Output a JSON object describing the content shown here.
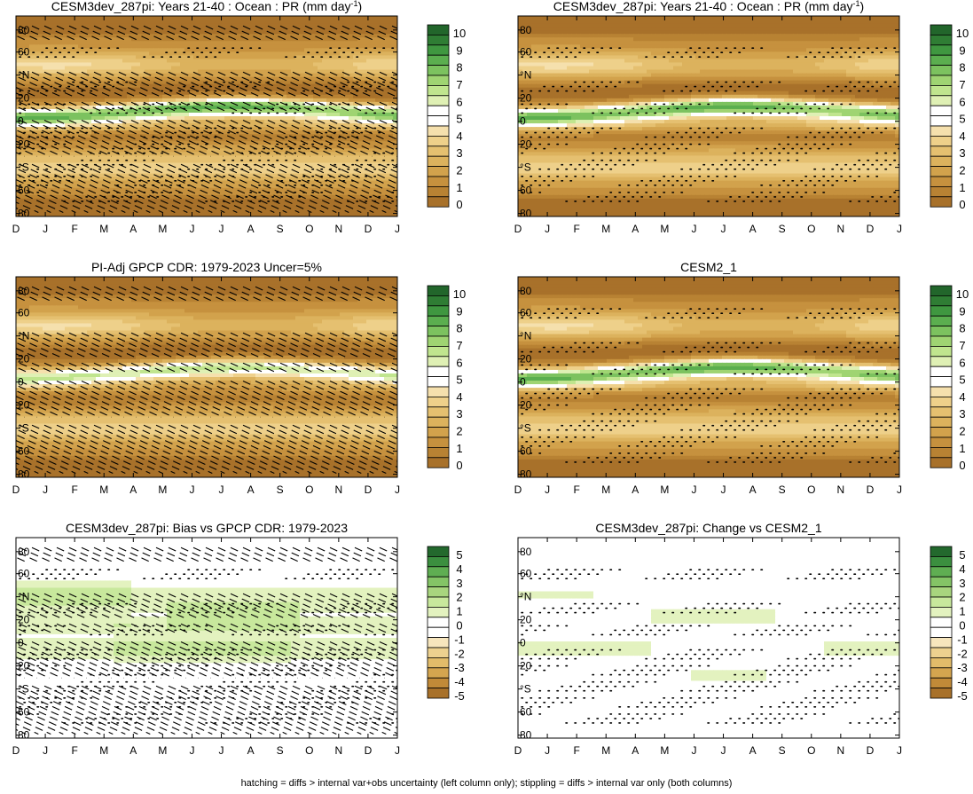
{
  "footnote": "hatching = diffs > internal var+obs uncertainty (left column only); stippling = diffs > internal var only (both columns)",
  "colors": {
    "precip_scale": [
      "#a8712a",
      "#b88233",
      "#c6913e",
      "#d2a24c",
      "#dcb25d",
      "#e5c070",
      "#eed08a",
      "#f5e0ad",
      "#ffffff",
      "#ffffff",
      "#dff0b4",
      "#c0e58e",
      "#9fd472",
      "#7cc25f",
      "#5bae4f",
      "#3f9740",
      "#2f7d34",
      "#22662b"
    ],
    "diff_scale": [
      "#a8712a",
      "#c18a38",
      "#d4a54f",
      "#e2bc6a",
      "#edd18f",
      "#f7e6bd",
      "#ffffff",
      "#ffffff",
      "#e3f2bf",
      "#c8e89c",
      "#a8d57e",
      "#84c466",
      "#5fae52",
      "#3b8f3f",
      "#23692d"
    ]
  },
  "chart_data": [
    {
      "id": "p1",
      "type": "heatmap",
      "title": "CESM3dev_287pi: Years 21-40 : Ocean : PR (mm day",
      "title_sup": "-1",
      "title_end": ")",
      "x_ticks": [
        "D",
        "J",
        "F",
        "M",
        "A",
        "M",
        "J",
        "J",
        "A",
        "S",
        "O",
        "N",
        "D",
        "J"
      ],
      "y_ticks": [
        "80",
        "60",
        "°N",
        "20",
        "0",
        "20",
        "°S",
        "60",
        "80"
      ],
      "ylim": [
        -90,
        90
      ],
      "colorbar_labels": [
        "10",
        "9",
        "8",
        "7",
        "6",
        "5",
        "4",
        "3",
        "2",
        "1",
        "0"
      ],
      "field": "mean_precip_model",
      "overlay": "hatching+stippling"
    },
    {
      "id": "p2",
      "type": "heatmap",
      "title": "CESM3dev_287pi: Years 21-40 : Ocean : PR (mm day",
      "title_sup": "-1",
      "title_end": ")",
      "x_ticks": [
        "D",
        "J",
        "F",
        "M",
        "A",
        "M",
        "J",
        "J",
        "A",
        "S",
        "O",
        "N",
        "D",
        "J"
      ],
      "y_ticks": [
        "80",
        "60",
        "°N",
        "20",
        "0",
        "20",
        "°S",
        "60",
        "80"
      ],
      "ylim": [
        -90,
        90
      ],
      "colorbar_labels": [
        "10",
        "9",
        "8",
        "7",
        "6",
        "5",
        "4",
        "3",
        "2",
        "1",
        "0"
      ],
      "field": "mean_precip_model",
      "overlay": "stippling"
    },
    {
      "id": "p3",
      "type": "heatmap",
      "title": "PI-Adj GPCP CDR: 1979-2023 Uncer=5%",
      "x_ticks": [
        "D",
        "J",
        "F",
        "M",
        "A",
        "M",
        "J",
        "J",
        "A",
        "S",
        "O",
        "N",
        "D",
        "J"
      ],
      "y_ticks": [
        "80",
        "60",
        "°N",
        "20",
        "0",
        "20",
        "°S",
        "60",
        "80"
      ],
      "ylim": [
        -90,
        90
      ],
      "colorbar_labels": [
        "10",
        "9",
        "8",
        "7",
        "6",
        "5",
        "4",
        "3",
        "2",
        "1",
        "0"
      ],
      "field": "mean_precip_obs",
      "overlay": "hatching"
    },
    {
      "id": "p4",
      "type": "heatmap",
      "title": "CESM2_1",
      "x_ticks": [
        "D",
        "J",
        "F",
        "M",
        "A",
        "M",
        "J",
        "J",
        "A",
        "S",
        "O",
        "N",
        "D",
        "J"
      ],
      "y_ticks": [
        "80",
        "60",
        "°N",
        "20",
        "0",
        "20",
        "°S",
        "60",
        "80"
      ],
      "ylim": [
        -90,
        90
      ],
      "colorbar_labels": [
        "10",
        "9",
        "8",
        "7",
        "6",
        "5",
        "4",
        "3",
        "2",
        "1",
        "0"
      ],
      "field": "mean_precip_ref",
      "overlay": "stippling"
    },
    {
      "id": "p5",
      "type": "heatmap",
      "title": "CESM3dev_287pi: Bias vs GPCP CDR: 1979-2023",
      "x_ticks": [
        "D",
        "J",
        "F",
        "M",
        "A",
        "M",
        "J",
        "J",
        "A",
        "S",
        "O",
        "N",
        "D",
        "J"
      ],
      "y_ticks": [
        "80",
        "60",
        "°N",
        "20",
        "0",
        "20",
        "°S",
        "60",
        "80"
      ],
      "ylim": [
        -90,
        90
      ],
      "colorbar_labels": [
        "5",
        "4",
        "3",
        "2",
        "1",
        "0",
        "-1",
        "-2",
        "-3",
        "-4",
        "-5"
      ],
      "field": "bias",
      "overlay": "hatching+stippling"
    },
    {
      "id": "p6",
      "type": "heatmap",
      "title": "CESM3dev_287pi: Change vs CESM2_1",
      "x_ticks": [
        "D",
        "J",
        "F",
        "M",
        "A",
        "M",
        "J",
        "J",
        "A",
        "S",
        "O",
        "N",
        "D",
        "J"
      ],
      "y_ticks": [
        "80",
        "60",
        "°N",
        "20",
        "0",
        "20",
        "°S",
        "60",
        "80"
      ],
      "ylim": [
        -90,
        90
      ],
      "colorbar_labels": [
        "5",
        "4",
        "3",
        "2",
        "1",
        "0",
        "-1",
        "-2",
        "-3",
        "-4",
        "-5"
      ],
      "field": "change",
      "overlay": "stippling"
    }
  ]
}
